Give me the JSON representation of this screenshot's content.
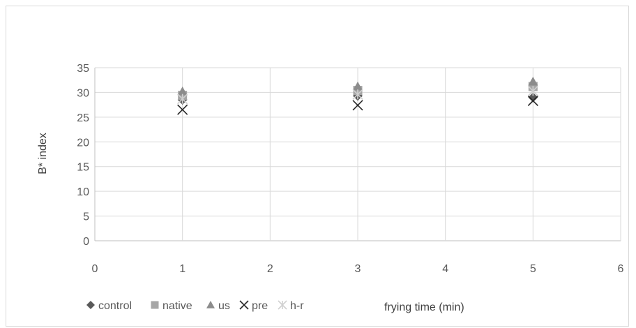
{
  "chart_data": {
    "type": "scatter",
    "title": "",
    "xlabel": "frying time (min)",
    "ylabel": "B* index",
    "xlim": [
      0,
      6
    ],
    "ylim": [
      0,
      35
    ],
    "x_ticks": [
      0,
      1,
      2,
      3,
      4,
      5,
      6
    ],
    "y_ticks": [
      0,
      5,
      10,
      15,
      20,
      25,
      30,
      35
    ],
    "grid": true,
    "legend_position": "bottom-left",
    "series": [
      {
        "name": "control",
        "marker": "diamond",
        "color": "#595959",
        "x": [
          1,
          3,
          5
        ],
        "y": [
          28.5,
          29.3,
          29.0
        ]
      },
      {
        "name": "native",
        "marker": "square",
        "color": "#a6a6a6",
        "x": [
          1,
          3,
          5
        ],
        "y": [
          29.4,
          30.4,
          31.2
        ]
      },
      {
        "name": "us",
        "marker": "triangle",
        "color": "#8c8c8c",
        "x": [
          1,
          3,
          5
        ],
        "y": [
          30.2,
          31.2,
          32.2
        ]
      },
      {
        "name": "pre",
        "marker": "x",
        "color": "#262626",
        "x": [
          1,
          3,
          5
        ],
        "y": [
          26.5,
          27.4,
          28.3
        ]
      },
      {
        "name": "h-r",
        "marker": "asterisk",
        "color": "#d0d0d0",
        "x": [
          1,
          3,
          5
        ],
        "y": [
          28.7,
          29.6,
          30.3
        ]
      }
    ]
  }
}
